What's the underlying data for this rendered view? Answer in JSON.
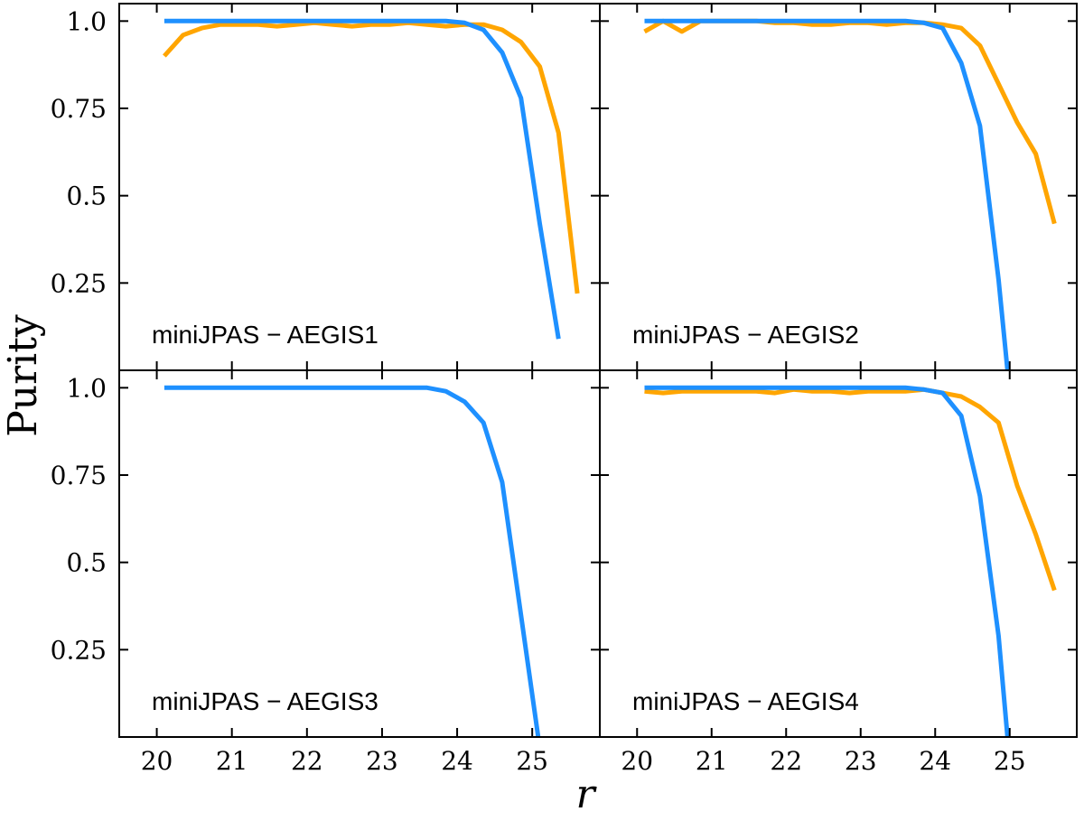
{
  "chart_data": {
    "type": "line",
    "xlabel": "r",
    "ylabel": "Purity",
    "xlim": [
      19.5,
      25.9
    ],
    "ylim": [
      0,
      1.05
    ],
    "xticks": [
      20,
      21,
      22,
      23,
      24,
      25
    ],
    "xtick_labels": [
      "20",
      "21",
      "22",
      "23",
      "24",
      "25"
    ],
    "yticks": [
      0.25,
      0.5,
      0.75,
      1.0
    ],
    "ytick_labels": [
      "0.25",
      "0.5",
      "0.75",
      "1.0"
    ],
    "series_colors": [
      "#FFA500",
      "#1E90FF"
    ],
    "panels": [
      {
        "label": "miniJPAS − AEGIS1",
        "series": [
          {
            "color": "#FFA500",
            "x": [
              20.1,
              20.35,
              20.6,
              20.85,
              21.1,
              21.35,
              21.6,
              21.85,
              22.1,
              22.35,
              22.6,
              22.85,
              23.1,
              23.35,
              23.6,
              23.85,
              24.1,
              24.35,
              24.6,
              24.85,
              25.1,
              25.35,
              25.6
            ],
            "y": [
              0.9,
              0.96,
              0.98,
              0.99,
              0.99,
              0.99,
              0.985,
              0.99,
              0.995,
              0.99,
              0.985,
              0.99,
              0.99,
              0.995,
              0.99,
              0.985,
              0.99,
              0.99,
              0.975,
              0.94,
              0.87,
              0.68,
              0.22
            ]
          },
          {
            "color": "#1E90FF",
            "x": [
              20.1,
              20.35,
              20.6,
              20.85,
              21.1,
              21.35,
              21.6,
              21.85,
              22.1,
              22.35,
              22.6,
              22.85,
              23.1,
              23.35,
              23.6,
              23.85,
              24.1,
              24.35,
              24.6,
              24.85,
              25.1,
              25.35
            ],
            "y": [
              1.0,
              1.0,
              1.0,
              1.0,
              1.0,
              1.0,
              1.0,
              1.0,
              1.0,
              1.0,
              1.0,
              1.0,
              1.0,
              1.0,
              1.0,
              1.0,
              0.995,
              0.975,
              0.91,
              0.78,
              0.42,
              0.09
            ]
          }
        ]
      },
      {
        "label": "miniJPAS − AEGIS2",
        "series": [
          {
            "color": "#FFA500",
            "x": [
              20.1,
              20.35,
              20.6,
              20.85,
              21.1,
              21.35,
              21.6,
              21.85,
              22.1,
              22.35,
              22.6,
              22.85,
              23.1,
              23.35,
              23.6,
              23.85,
              24.1,
              24.35,
              24.6,
              24.85,
              25.1,
              25.35,
              25.6
            ],
            "y": [
              0.97,
              1.0,
              0.97,
              1.0,
              1.0,
              1.0,
              1.0,
              0.995,
              0.995,
              0.99,
              0.99,
              0.995,
              0.995,
              0.99,
              0.995,
              0.995,
              0.99,
              0.98,
              0.93,
              0.82,
              0.71,
              0.62,
              0.42
            ]
          },
          {
            "color": "#1E90FF",
            "x": [
              20.1,
              20.35,
              20.6,
              20.85,
              21.1,
              21.35,
              21.6,
              21.85,
              22.1,
              22.35,
              22.6,
              22.85,
              23.1,
              23.35,
              23.6,
              23.85,
              24.1,
              24.35,
              24.6,
              24.85,
              24.97
            ],
            "y": [
              1.0,
              1.0,
              1.0,
              1.0,
              1.0,
              1.0,
              1.0,
              1.0,
              1.0,
              1.0,
              1.0,
              1.0,
              1.0,
              1.0,
              1.0,
              0.995,
              0.98,
              0.88,
              0.7,
              0.26,
              0.0
            ]
          }
        ]
      },
      {
        "label": "miniJPAS − AEGIS3",
        "series": [
          {
            "color": "#1E90FF",
            "x": [
              20.1,
              20.35,
              20.6,
              20.85,
              21.1,
              21.35,
              21.6,
              21.85,
              22.1,
              22.35,
              22.6,
              22.85,
              23.1,
              23.35,
              23.6,
              23.85,
              24.1,
              24.35,
              24.6,
              24.85,
              25.08
            ],
            "y": [
              1.0,
              1.0,
              1.0,
              1.0,
              1.0,
              1.0,
              1.0,
              1.0,
              1.0,
              1.0,
              1.0,
              1.0,
              1.0,
              1.0,
              1.0,
              0.99,
              0.96,
              0.9,
              0.73,
              0.35,
              0.0
            ]
          }
        ]
      },
      {
        "label": "miniJPAS − AEGIS4",
        "series": [
          {
            "color": "#FFA500",
            "x": [
              20.1,
              20.35,
              20.6,
              20.85,
              21.1,
              21.35,
              21.6,
              21.85,
              22.1,
              22.35,
              22.6,
              22.85,
              23.1,
              23.35,
              23.6,
              23.85,
              24.1,
              24.35,
              24.6,
              24.85,
              25.1,
              25.35,
              25.6
            ],
            "y": [
              0.99,
              0.985,
              0.99,
              0.99,
              0.99,
              0.99,
              0.99,
              0.985,
              0.995,
              0.99,
              0.99,
              0.985,
              0.99,
              0.99,
              0.99,
              0.995,
              0.985,
              0.975,
              0.945,
              0.9,
              0.72,
              0.58,
              0.42
            ]
          },
          {
            "color": "#1E90FF",
            "x": [
              20.1,
              20.35,
              20.6,
              20.85,
              21.1,
              21.35,
              21.6,
              21.85,
              22.1,
              22.35,
              22.6,
              22.85,
              23.1,
              23.35,
              23.6,
              23.85,
              24.1,
              24.35,
              24.6,
              24.85,
              24.97
            ],
            "y": [
              1.0,
              1.0,
              1.0,
              1.0,
              1.0,
              1.0,
              1.0,
              1.0,
              1.0,
              1.0,
              1.0,
              1.0,
              1.0,
              1.0,
              1.0,
              0.995,
              0.985,
              0.92,
              0.69,
              0.29,
              0.0
            ]
          }
        ]
      }
    ]
  }
}
